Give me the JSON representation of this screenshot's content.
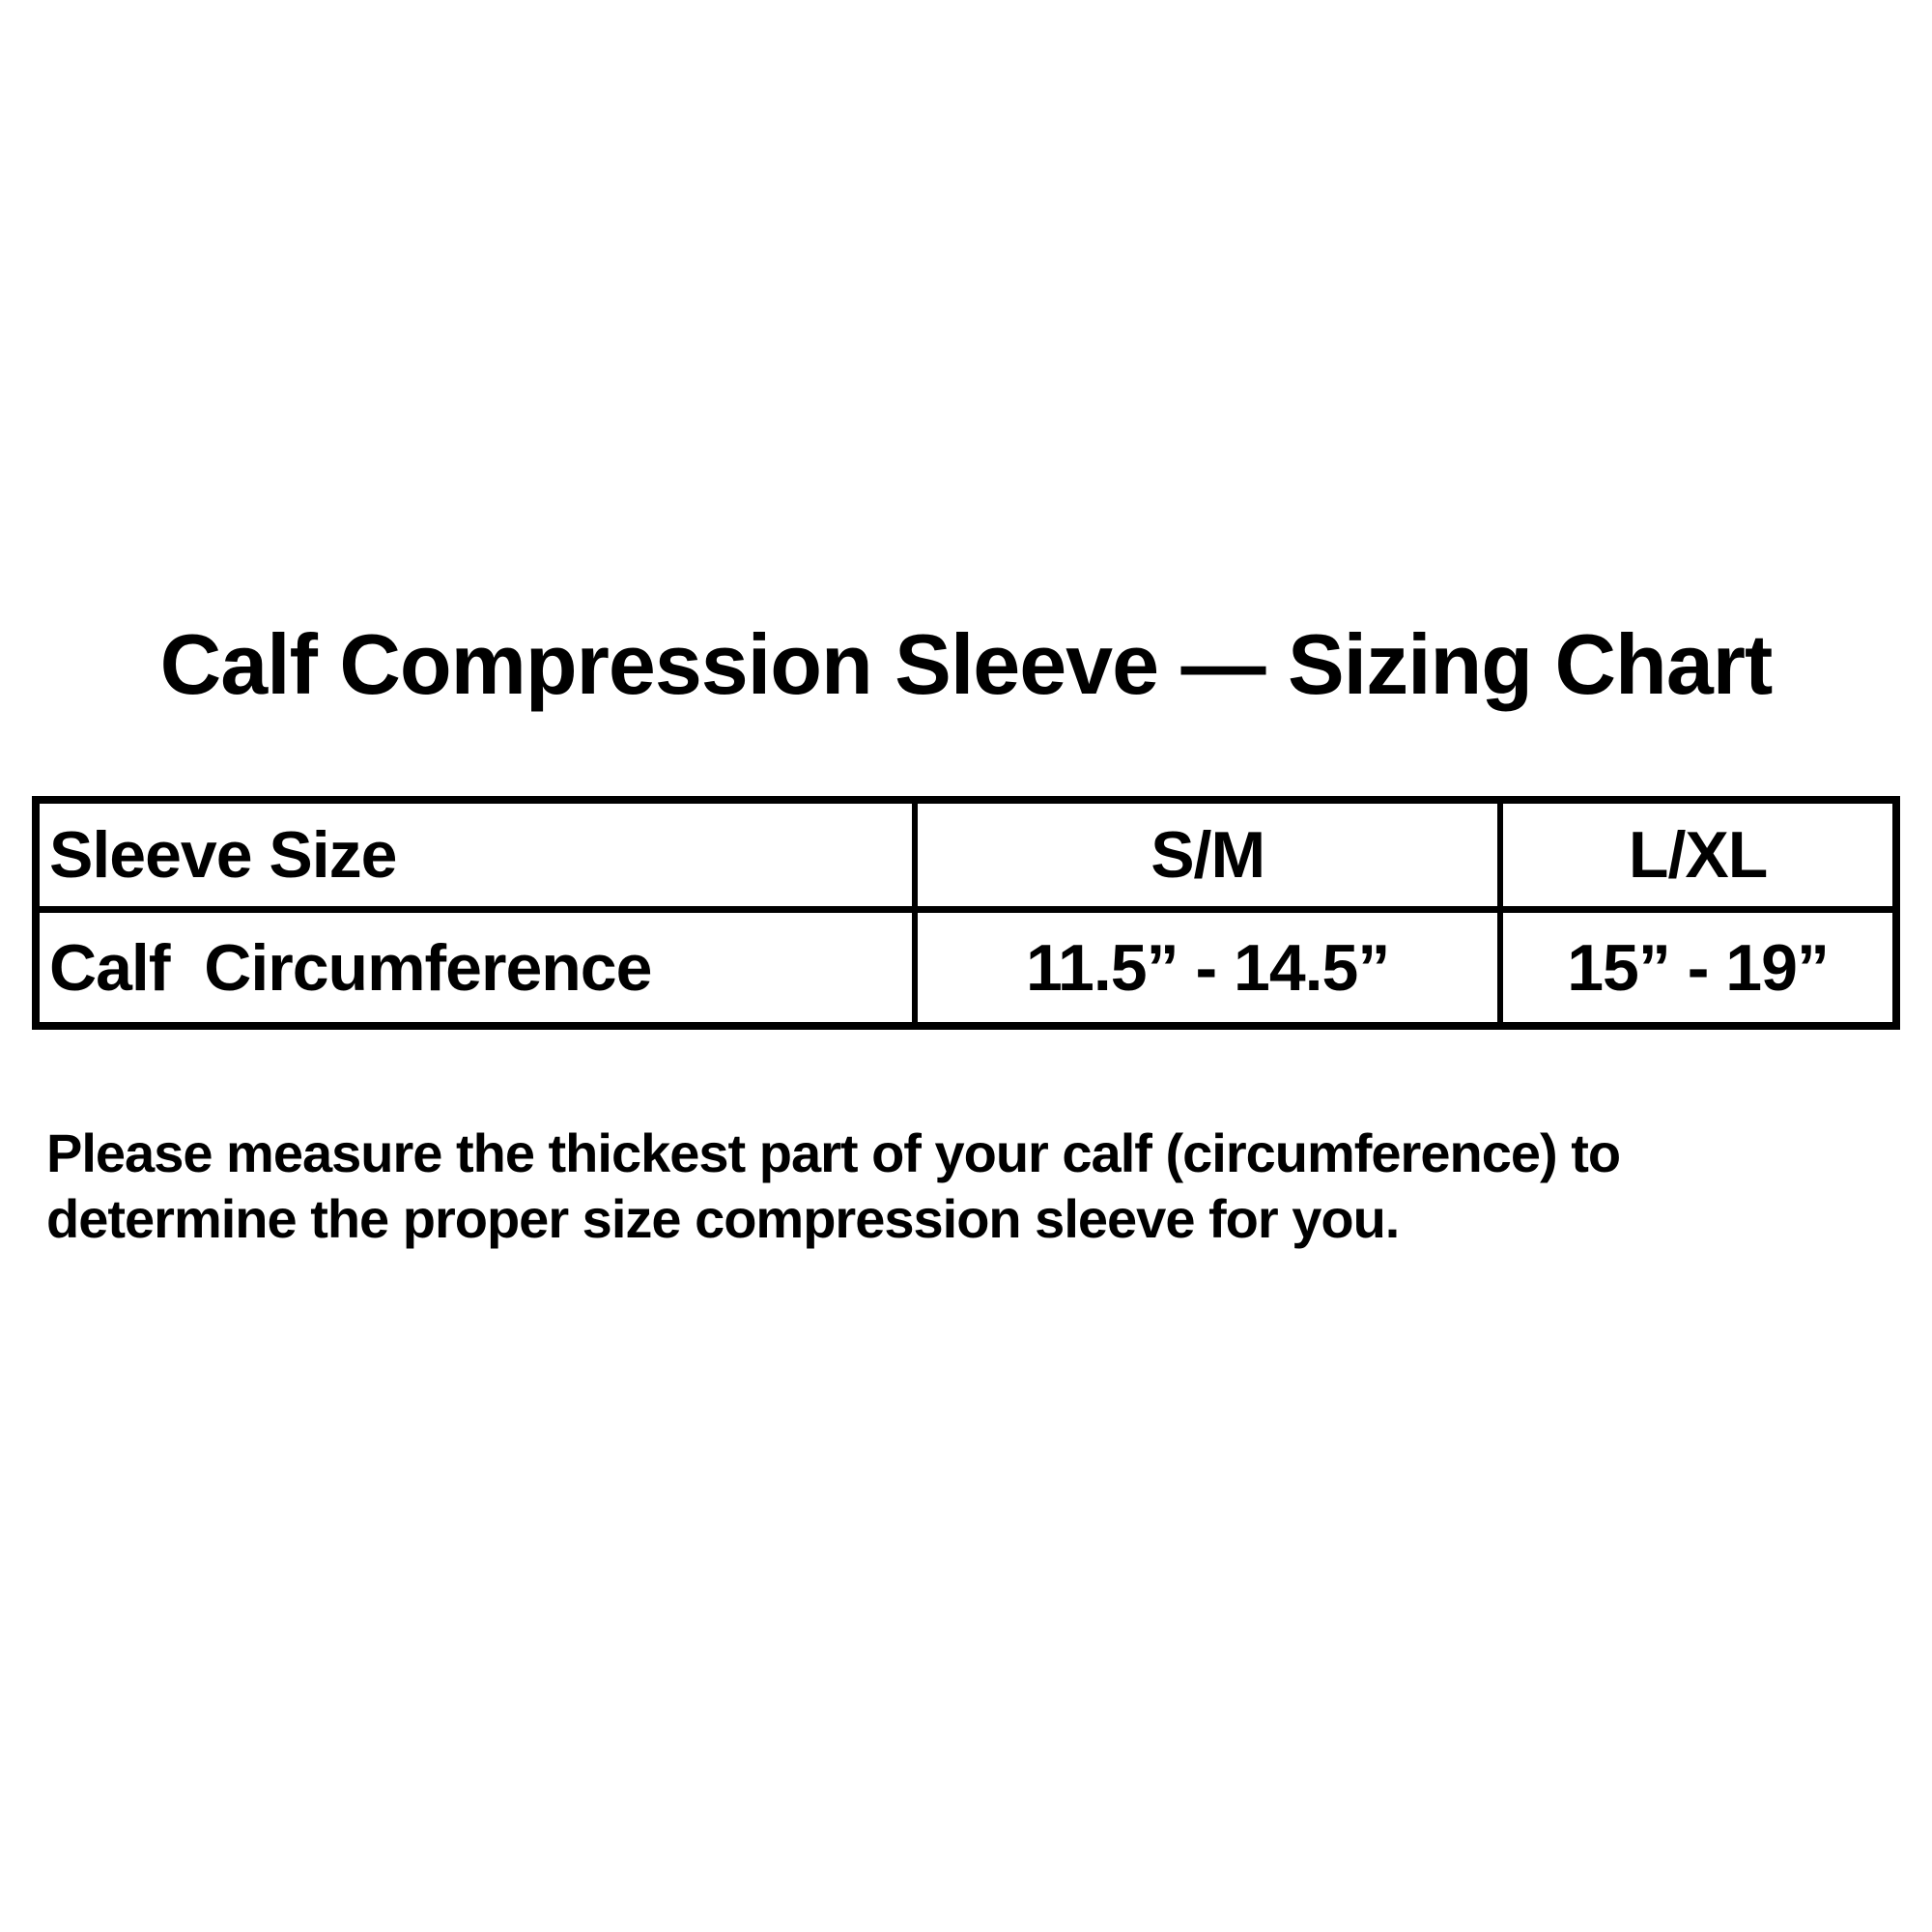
{
  "page": {
    "background_color": "#ffffff",
    "text_color": "#000000"
  },
  "title": "Calf Compression Sleeve — Sizing Chart",
  "sizing_table": {
    "header_row": {
      "label": "Sleeve Size",
      "columns": [
        "S/M",
        "L/XL"
      ]
    },
    "data_row": {
      "label": "Calf  Circumference",
      "values": [
        "11.5” - 14.5”",
        "15” - 19”"
      ]
    }
  },
  "note": {
    "lines": [
      "Please measure the thickest part of your calf (circumference) to",
      "determine the proper size compression sleeve for you."
    ]
  }
}
